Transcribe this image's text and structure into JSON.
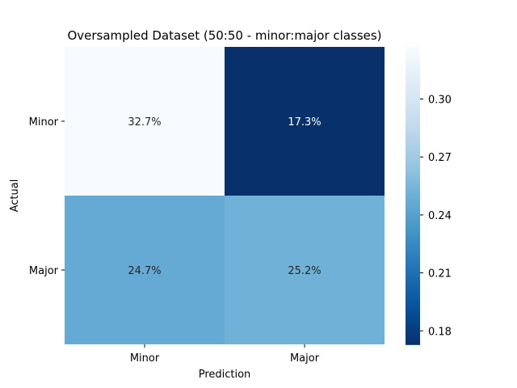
{
  "chart_data": {
    "type": "heatmap",
    "title": "Oversampled Dataset (50:50 - minor:major classes)",
    "xlabel": "Prediction",
    "ylabel": "Actual",
    "x_categories": [
      "Minor",
      "Major"
    ],
    "y_categories": [
      "Minor",
      "Major"
    ],
    "values": [
      [
        0.327,
        0.173
      ],
      [
        0.247,
        0.252
      ]
    ],
    "cell_labels": [
      [
        "32.7%",
        "17.3%"
      ],
      [
        "24.7%",
        "25.2%"
      ]
    ],
    "colormap": "Blues",
    "colorbar": {
      "range": [
        0.173,
        0.327
      ],
      "ticks": [
        0.18,
        0.21,
        0.24,
        0.27,
        0.3
      ],
      "tick_labels": [
        "0.18",
        "0.21",
        "0.24",
        "0.27",
        "0.30"
      ]
    },
    "colors": {
      "low": "#08306b",
      "high": "#f7fbff"
    },
    "grid": false
  }
}
